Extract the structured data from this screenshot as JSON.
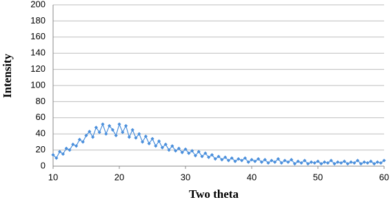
{
  "chart_data": {
    "type": "line",
    "xlabel": "Two theta",
    "ylabel": "Intensity",
    "x": [
      10,
      10.5,
      11,
      11.5,
      12,
      12.5,
      13,
      13.5,
      14,
      14.5,
      15,
      15.5,
      16,
      16.5,
      17,
      17.5,
      18,
      18.5,
      19,
      19.5,
      20,
      20.5,
      21,
      21.5,
      22,
      22.5,
      23,
      23.5,
      24,
      24.5,
      25,
      25.5,
      26,
      26.5,
      27,
      27.5,
      28,
      28.5,
      29,
      29.5,
      30,
      30.5,
      31,
      31.5,
      32,
      32.5,
      33,
      33.5,
      34,
      34.5,
      35,
      35.5,
      36,
      36.5,
      37,
      37.5,
      38,
      38.5,
      39,
      39.5,
      40,
      40.5,
      41,
      41.5,
      42,
      42.5,
      43,
      43.5,
      44,
      44.5,
      45,
      45.5,
      46,
      46.5,
      47,
      47.5,
      48,
      48.5,
      49,
      49.5,
      50,
      50.5,
      51,
      51.5,
      52,
      52.5,
      53,
      53.5,
      54,
      54.5,
      55,
      55.5,
      56,
      56.5,
      57,
      57.5,
      58,
      58.5,
      59,
      59.5,
      60
    ],
    "values": [
      14,
      10,
      18,
      15,
      22,
      20,
      27,
      25,
      33,
      30,
      38,
      43,
      36,
      48,
      42,
      52,
      40,
      50,
      45,
      38,
      52,
      42,
      50,
      36,
      45,
      35,
      40,
      30,
      37,
      28,
      34,
      25,
      31,
      23,
      27,
      20,
      25,
      19,
      22,
      17,
      21,
      16,
      19,
      13,
      18,
      12,
      16,
      11,
      14,
      9,
      12,
      8,
      11,
      7,
      10,
      6,
      9,
      7,
      10,
      5,
      8,
      6,
      9,
      5,
      8,
      4,
      7,
      5,
      9,
      4,
      7,
      5,
      8,
      3,
      6,
      4,
      7,
      3,
      5,
      4,
      6,
      3,
      5,
      4,
      7,
      3,
      5,
      4,
      6,
      3,
      5,
      4,
      7,
      3,
      5,
      4,
      6,
      3,
      5,
      4,
      7
    ],
    "color": "#4a8fdc",
    "xlim": [
      10,
      60
    ],
    "xticks": [
      10,
      20,
      30,
      40,
      50,
      60
    ],
    "ylim": [
      0,
      200
    ],
    "yticks": [
      0,
      20,
      40,
      60,
      80,
      100,
      120,
      140,
      160,
      180,
      200
    ],
    "grid": true
  }
}
